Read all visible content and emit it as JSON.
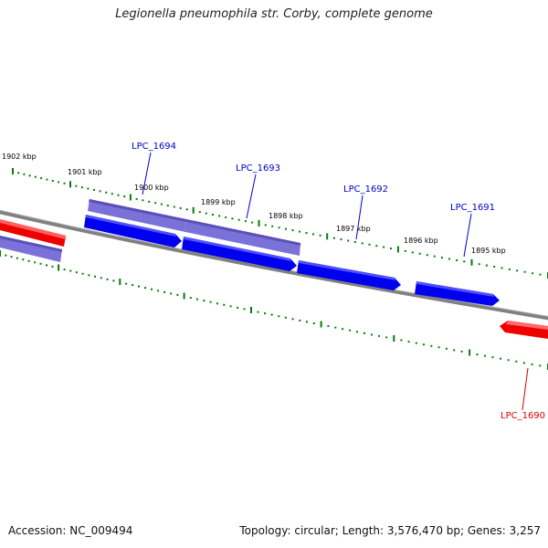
{
  "title": "Legionella pneumophila str. Corby, complete genome",
  "accession_label": "Accession: NC_009494",
  "summary_label": "Topology: circular; Length: 3,576,470 bp; Genes: 3,257",
  "colors": {
    "forward_gene": "#0000ee",
    "forward_gene_faded": "#7a72d8",
    "reverse_gene": "#ee0000",
    "backbone": "#808080",
    "ticks": "#0a7a0a",
    "forward_label": "#0000cc",
    "reverse_label": "#dd0000"
  },
  "kbp_labels": [
    "1902 kbp",
    "1901 kbp",
    "1900 kbp",
    "1899 kbp",
    "1898 kbp",
    "1897 kbp",
    "1896 kbp",
    "1895 kbp"
  ],
  "genes": [
    {
      "id": "LPC_1694",
      "strand": "forward"
    },
    {
      "id": "LPC_1693",
      "strand": "forward"
    },
    {
      "id": "LPC_1692",
      "strand": "forward"
    },
    {
      "id": "LPC_1691",
      "strand": "forward"
    },
    {
      "id": "LPC_1690",
      "strand": "reverse"
    }
  ]
}
